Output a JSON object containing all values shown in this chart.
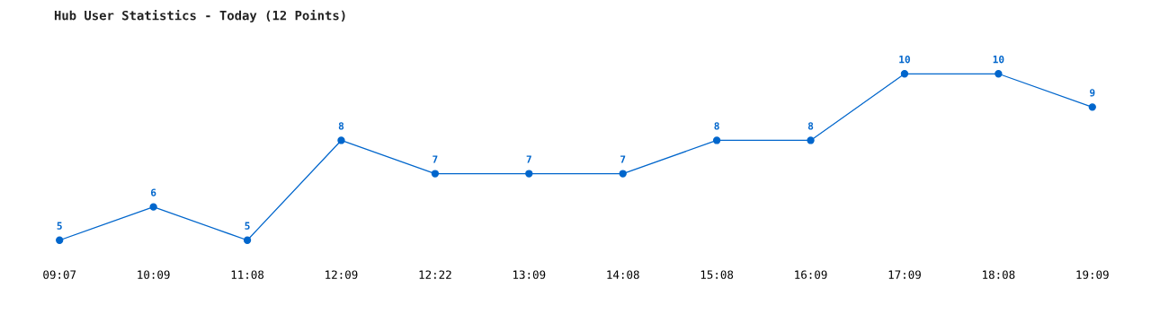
{
  "chart_data": {
    "type": "line",
    "title": "Hub User Statistics - Today (12 Points)",
    "categories": [
      "09:07",
      "10:09",
      "11:08",
      "12:09",
      "12:22",
      "13:09",
      "14:08",
      "15:08",
      "16:09",
      "17:09",
      "18:08",
      "19:09"
    ],
    "series": [
      {
        "color": "#0066cc",
        "values": [
          5,
          6,
          5,
          8,
          7,
          7,
          7,
          8,
          8,
          10,
          10,
          9
        ]
      }
    ],
    "data_labels": true,
    "marker": "circle",
    "line_style": "solid",
    "grid": false,
    "tick_labels": "x"
  }
}
